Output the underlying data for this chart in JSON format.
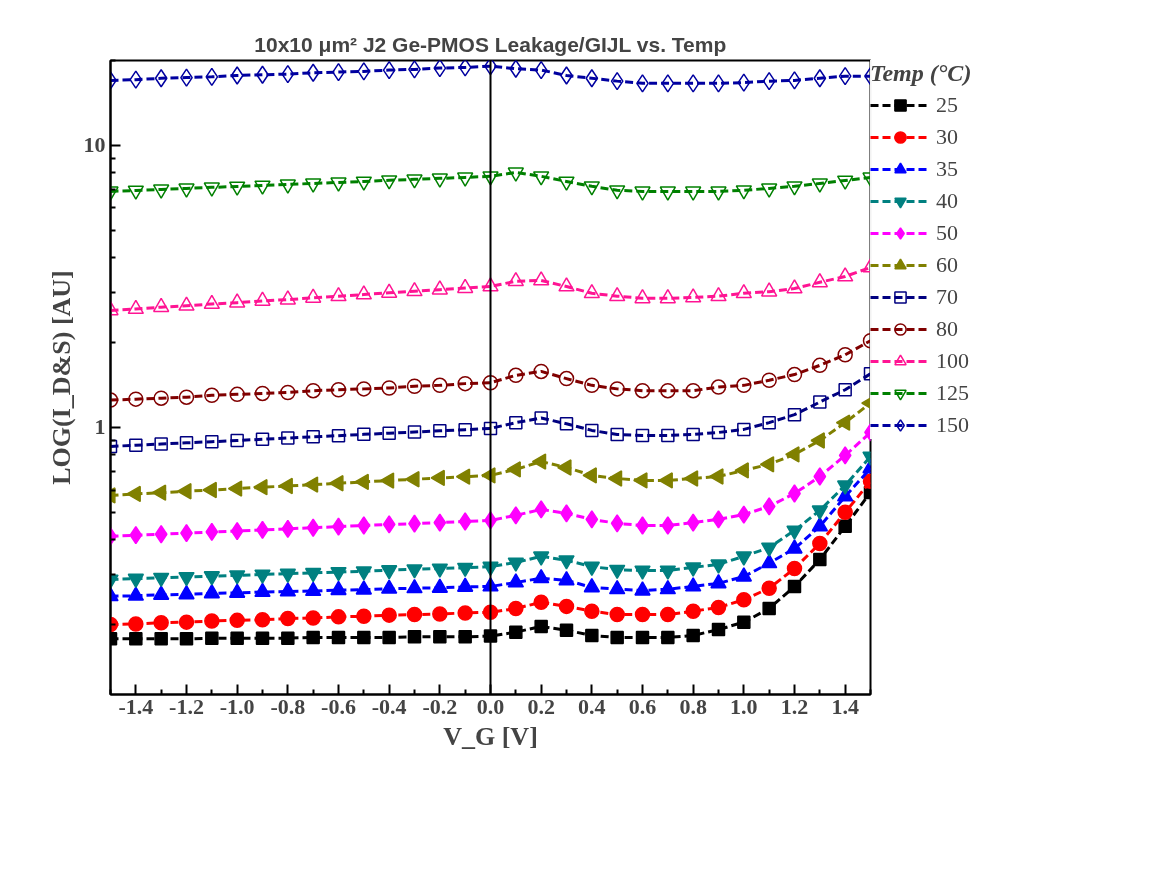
{
  "chart_data": {
    "type": "line",
    "title": "10x10 μm² J2 Ge-PMOS Leakage/GIJL vs. Temp",
    "xlabel": "V_G [V]",
    "ylabel": "LOG(I_D&S) [AU]",
    "legend_title": "Temp (°C)",
    "x": [
      -1.5,
      -1.4,
      -1.3,
      -1.2,
      -1.1,
      -1.0,
      -0.9,
      -0.8,
      -0.7,
      -0.6,
      -0.5,
      -0.4,
      -0.3,
      -0.2,
      -0.1,
      0.0,
      0.1,
      0.2,
      0.3,
      0.4,
      0.5,
      0.6,
      0.7,
      0.8,
      0.9,
      1.0,
      1.1,
      1.2,
      1.3,
      1.4,
      1.5
    ],
    "series": [
      {
        "name": "25",
        "color": "#000000",
        "marker": "square",
        "values": [
          0.178,
          0.178,
          0.178,
          0.178,
          0.179,
          0.179,
          0.179,
          0.179,
          0.18,
          0.18,
          0.18,
          0.18,
          0.181,
          0.181,
          0.181,
          0.182,
          0.188,
          0.197,
          0.191,
          0.183,
          0.18,
          0.18,
          0.18,
          0.183,
          0.192,
          0.204,
          0.228,
          0.273,
          0.34,
          0.446,
          0.588
        ]
      },
      {
        "name": "30",
        "color": "#ff0000",
        "marker": "circle",
        "values": [
          0.2,
          0.201,
          0.203,
          0.204,
          0.206,
          0.207,
          0.208,
          0.21,
          0.211,
          0.213,
          0.214,
          0.216,
          0.217,
          0.218,
          0.22,
          0.221,
          0.228,
          0.24,
          0.232,
          0.223,
          0.217,
          0.217,
          0.217,
          0.223,
          0.23,
          0.245,
          0.269,
          0.316,
          0.388,
          0.5,
          0.644
        ]
      },
      {
        "name": "35",
        "color": "#0000ff",
        "marker": "triangle",
        "values": [
          0.252,
          0.253,
          0.255,
          0.256,
          0.258,
          0.259,
          0.261,
          0.262,
          0.263,
          0.265,
          0.266,
          0.268,
          0.269,
          0.27,
          0.272,
          0.273,
          0.282,
          0.292,
          0.287,
          0.271,
          0.267,
          0.264,
          0.267,
          0.273,
          0.28,
          0.296,
          0.33,
          0.372,
          0.446,
          0.569,
          0.716
        ]
      },
      {
        "name": "40",
        "color": "#008080",
        "marker": "triangle_down",
        "values": [
          0.289,
          0.291,
          0.293,
          0.295,
          0.297,
          0.299,
          0.301,
          0.303,
          0.305,
          0.307,
          0.309,
          0.312,
          0.314,
          0.316,
          0.318,
          0.321,
          0.332,
          0.349,
          0.338,
          0.321,
          0.313,
          0.311,
          0.311,
          0.319,
          0.327,
          0.349,
          0.375,
          0.431,
          0.508,
          0.623,
          0.789
        ]
      },
      {
        "name": "50",
        "color": "#ff00ff",
        "marker": "diamond",
        "values": [
          0.411,
          0.415,
          0.418,
          0.422,
          0.426,
          0.429,
          0.433,
          0.437,
          0.441,
          0.445,
          0.449,
          0.453,
          0.456,
          0.46,
          0.464,
          0.468,
          0.488,
          0.512,
          0.496,
          0.472,
          0.457,
          0.449,
          0.449,
          0.46,
          0.472,
          0.491,
          0.525,
          0.583,
          0.67,
          0.796,
          0.96
        ]
      },
      {
        "name": "60",
        "color": "#808000",
        "marker": "triangle_left",
        "values": [
          0.574,
          0.581,
          0.587,
          0.594,
          0.6,
          0.607,
          0.614,
          0.62,
          0.627,
          0.634,
          0.641,
          0.648,
          0.655,
          0.662,
          0.669,
          0.676,
          0.71,
          0.757,
          0.721,
          0.676,
          0.659,
          0.649,
          0.649,
          0.659,
          0.67,
          0.704,
          0.74,
          0.802,
          0.899,
          1.04,
          1.22
        ]
      },
      {
        "name": "70",
        "color": "#000080",
        "marker": "square_open",
        "values": [
          0.856,
          0.865,
          0.873,
          0.882,
          0.89,
          0.899,
          0.908,
          0.917,
          0.926,
          0.935,
          0.945,
          0.954,
          0.963,
          0.973,
          0.982,
          0.992,
          1.04,
          1.08,
          1.03,
          0.976,
          0.944,
          0.937,
          0.937,
          0.944,
          0.96,
          0.984,
          1.04,
          1.11,
          1.23,
          1.36,
          1.55
        ]
      },
      {
        "name": "80",
        "color": "#800000",
        "marker": "circle_open",
        "values": [
          1.25,
          1.26,
          1.27,
          1.28,
          1.3,
          1.31,
          1.32,
          1.33,
          1.35,
          1.36,
          1.37,
          1.38,
          1.4,
          1.41,
          1.43,
          1.44,
          1.53,
          1.58,
          1.49,
          1.41,
          1.37,
          1.35,
          1.35,
          1.35,
          1.39,
          1.41,
          1.47,
          1.54,
          1.66,
          1.81,
          2.03
        ]
      },
      {
        "name": "100",
        "color": "#ff1493",
        "marker": "triangle_open",
        "values": [
          2.6,
          2.63,
          2.67,
          2.7,
          2.74,
          2.77,
          2.81,
          2.84,
          2.88,
          2.92,
          2.96,
          3.0,
          3.04,
          3.08,
          3.12,
          3.16,
          3.3,
          3.32,
          3.16,
          2.99,
          2.92,
          2.87,
          2.87,
          2.89,
          2.92,
          2.99,
          3.03,
          3.11,
          3.27,
          3.43,
          3.69
        ]
      },
      {
        "name": "125",
        "color": "#008000",
        "marker": "triangle_down_open",
        "values": [
          6.87,
          6.92,
          6.98,
          7.04,
          7.1,
          7.15,
          7.21,
          7.27,
          7.33,
          7.39,
          7.45,
          7.52,
          7.58,
          7.64,
          7.7,
          7.77,
          8.02,
          7.77,
          7.45,
          7.16,
          6.93,
          6.87,
          6.87,
          6.87,
          6.87,
          6.93,
          7.04,
          7.16,
          7.33,
          7.51,
          7.7
        ]
      },
      {
        "name": "150",
        "color": "#0000a0",
        "marker": "diamond_open",
        "values": [
          17.0,
          17.1,
          17.3,
          17.4,
          17.5,
          17.7,
          17.8,
          17.9,
          18.1,
          18.2,
          18.3,
          18.5,
          18.6,
          18.8,
          18.9,
          19.1,
          18.7,
          18.5,
          17.7,
          17.3,
          16.9,
          16.6,
          16.6,
          16.6,
          16.6,
          16.7,
          16.9,
          17.0,
          17.3,
          17.6,
          17.6
        ]
      }
    ],
    "xlim": [
      -1.5,
      1.5
    ],
    "ylim": [
      0.113,
      20
    ],
    "log": "y",
    "xticks": [
      {
        "value": -1.5,
        "label": null
      },
      {
        "value": -1.4,
        "label": "-1.4"
      },
      {
        "value": -1.3,
        "label": null
      },
      {
        "value": -1.2,
        "label": "-1.2"
      },
      {
        "value": -1.1,
        "label": null
      },
      {
        "value": -1.0,
        "label": "-1.0"
      },
      {
        "value": -0.9,
        "label": null
      },
      {
        "value": -0.8,
        "label": "-0.8"
      },
      {
        "value": -0.7,
        "label": null
      },
      {
        "value": -0.6,
        "label": "-0.6"
      },
      {
        "value": -0.5,
        "label": null
      },
      {
        "value": -0.4,
        "label": "-0.4"
      },
      {
        "value": -0.3,
        "label": null
      },
      {
        "value": -0.2,
        "label": "-0.2"
      },
      {
        "value": -0.1,
        "label": null
      },
      {
        "value": 0.0,
        "label": "0.0"
      },
      {
        "value": 0.1,
        "label": null
      },
      {
        "value": 0.2,
        "label": "0.2"
      },
      {
        "value": 0.3,
        "label": null
      },
      {
        "value": 0.4,
        "label": "0.4"
      },
      {
        "value": 0.5,
        "label": null
      },
      {
        "value": 0.6,
        "label": "0.6"
      },
      {
        "value": 0.7,
        "label": null
      },
      {
        "value": 0.8,
        "label": "0.8"
      },
      {
        "value": 0.9,
        "label": null
      },
      {
        "value": 1.0,
        "label": "1.0"
      },
      {
        "value": 1.1,
        "label": null
      },
      {
        "value": 1.2,
        "label": "1.2"
      },
      {
        "value": 1.3,
        "label": null
      },
      {
        "value": 1.4,
        "label": "1.4"
      },
      {
        "value": 1.5,
        "label": null
      }
    ],
    "yticks": [
      {
        "value": 0.2,
        "label": null
      },
      {
        "value": 0.3,
        "label": null
      },
      {
        "value": 0.4,
        "label": null
      },
      {
        "value": 0.5,
        "label": null
      },
      {
        "value": 0.6,
        "label": null
      },
      {
        "value": 0.7,
        "label": null
      },
      {
        "value": 0.8,
        "label": null
      },
      {
        "value": 0.9,
        "label": null
      },
      1,
      {
        "value": 2,
        "label": null
      },
      {
        "value": 3,
        "label": null
      },
      {
        "value": 4,
        "label": null
      },
      {
        "value": 5,
        "label": null
      },
      {
        "value": 6,
        "label": null
      },
      {
        "value": 7,
        "label": null
      },
      {
        "value": 8,
        "label": null
      },
      {
        "value": 9,
        "label": null
      },
      10,
      {
        "value": 20,
        "label": null
      }
    ],
    "ref_lines": [
      {
        "axis": "x",
        "value": 0.0,
        "color": "#000000",
        "line_style": "solid"
      }
    ],
    "grid": false,
    "legend": "right",
    "line_style": "dashed"
  }
}
